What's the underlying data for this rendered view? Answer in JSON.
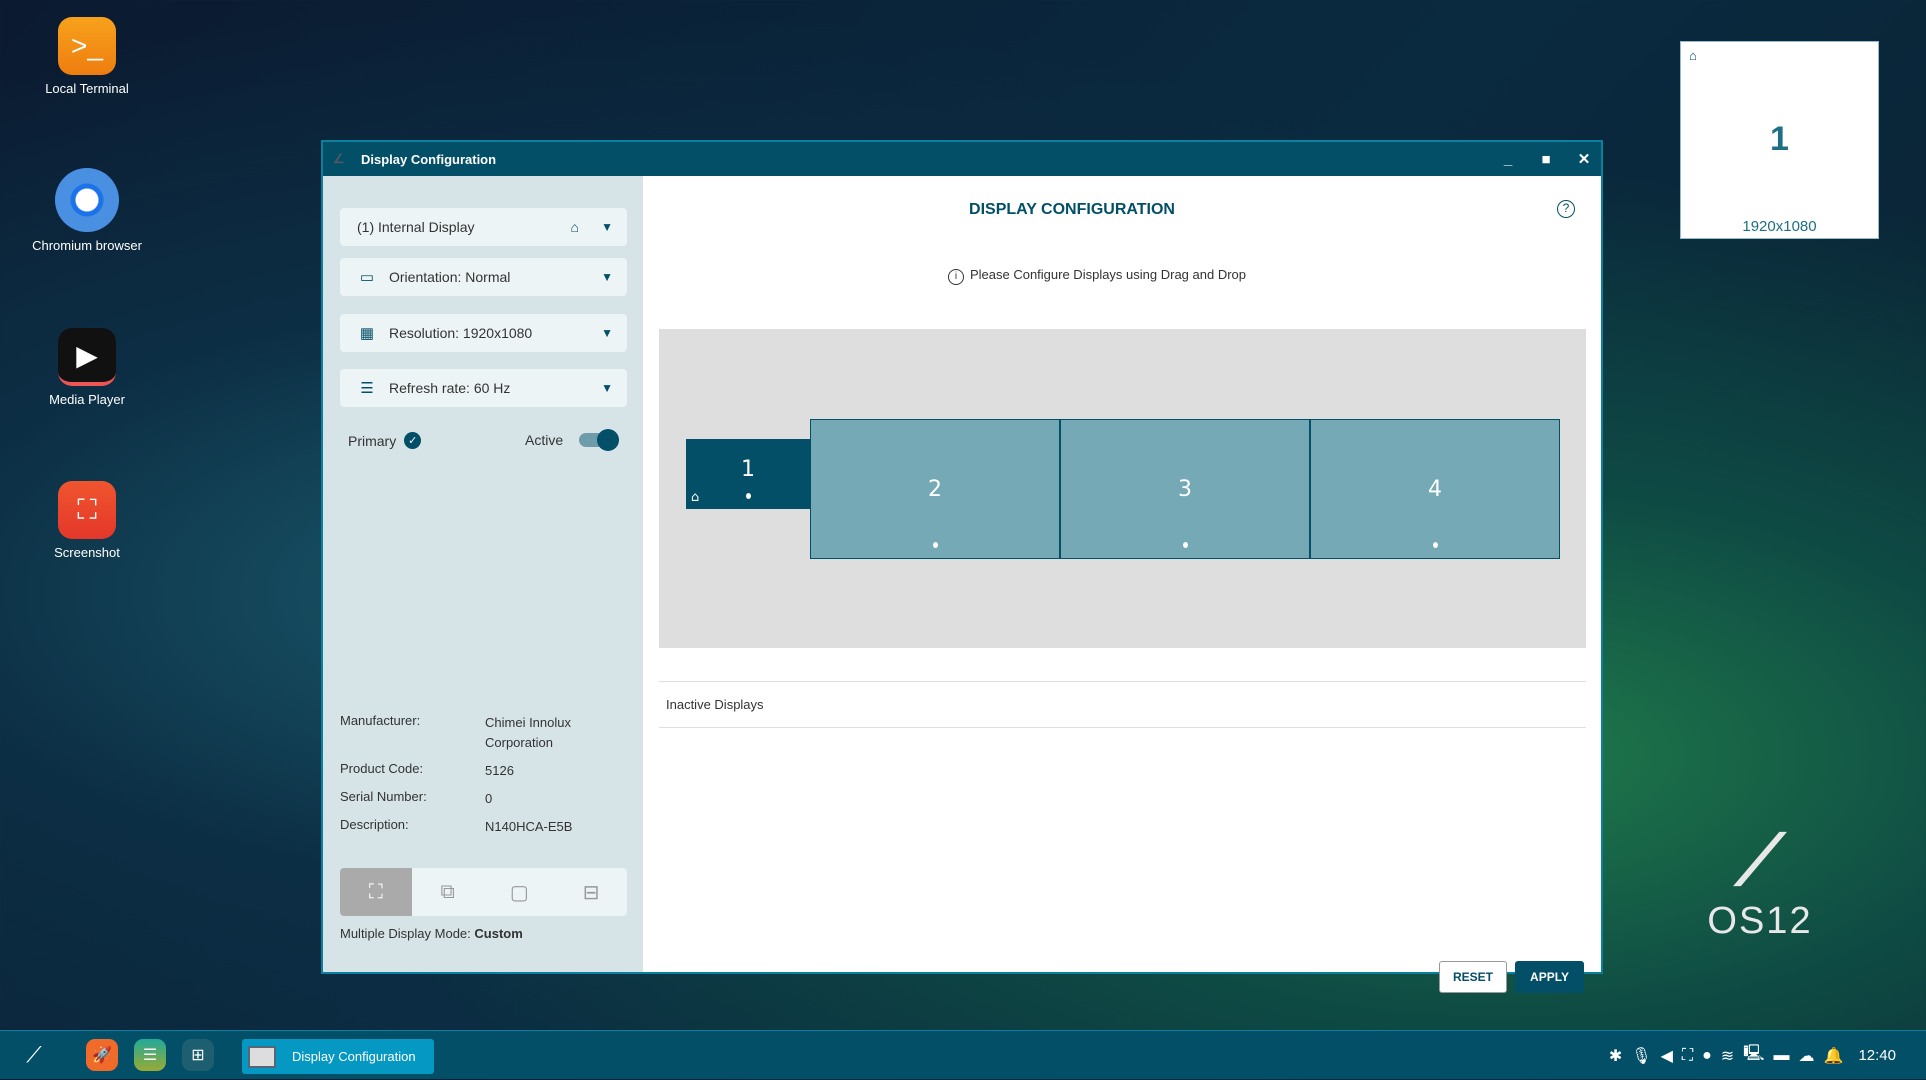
{
  "desktop": {
    "icons": [
      {
        "label": "Local Terminal",
        "icon": "terminal-icon"
      },
      {
        "label": "Chromium browser",
        "icon": "chromium-icon"
      },
      {
        "label": "Media Player",
        "icon": "media-player-icon"
      },
      {
        "label": "Screenshot",
        "icon": "screenshot-icon"
      }
    ],
    "logo_text": "OS12"
  },
  "preview": {
    "number": "1",
    "resolution": "1920x1080"
  },
  "window": {
    "title": "Display Configuration",
    "left": {
      "display_select": "(1) Internal Display",
      "orientation": "Orientation: Normal",
      "resolution": "Resolution: 1920x1080",
      "refresh": "Refresh rate: 60 Hz",
      "primary_label": "Primary",
      "active_label": "Active",
      "active_on": true,
      "info": [
        {
          "label": "Manufacturer:",
          "value": "Chimei Innolux Corporation"
        },
        {
          "label": "Product Code:",
          "value": "5126"
        },
        {
          "label": "Serial Number:",
          "value": "0"
        },
        {
          "label": "Description:",
          "value": "N140HCA-E5B"
        }
      ],
      "mode_label": "Multiple Display Mode:",
      "mode_value": "Custom"
    },
    "main": {
      "heading": "DISPLAY CONFIGURATION",
      "hint": "Please Configure Displays using Drag and Drop",
      "displays": [
        "1",
        "2",
        "3",
        "4"
      ],
      "inactive_label": "Inactive Displays",
      "reset": "RESET",
      "apply": "APPLY"
    }
  },
  "taskbar": {
    "task_label": "Display Configuration",
    "clock": "12:40"
  },
  "colors": {
    "accent": "#024f67",
    "secondary_display": "#75a9b5",
    "panel": "#d6e3e7"
  }
}
